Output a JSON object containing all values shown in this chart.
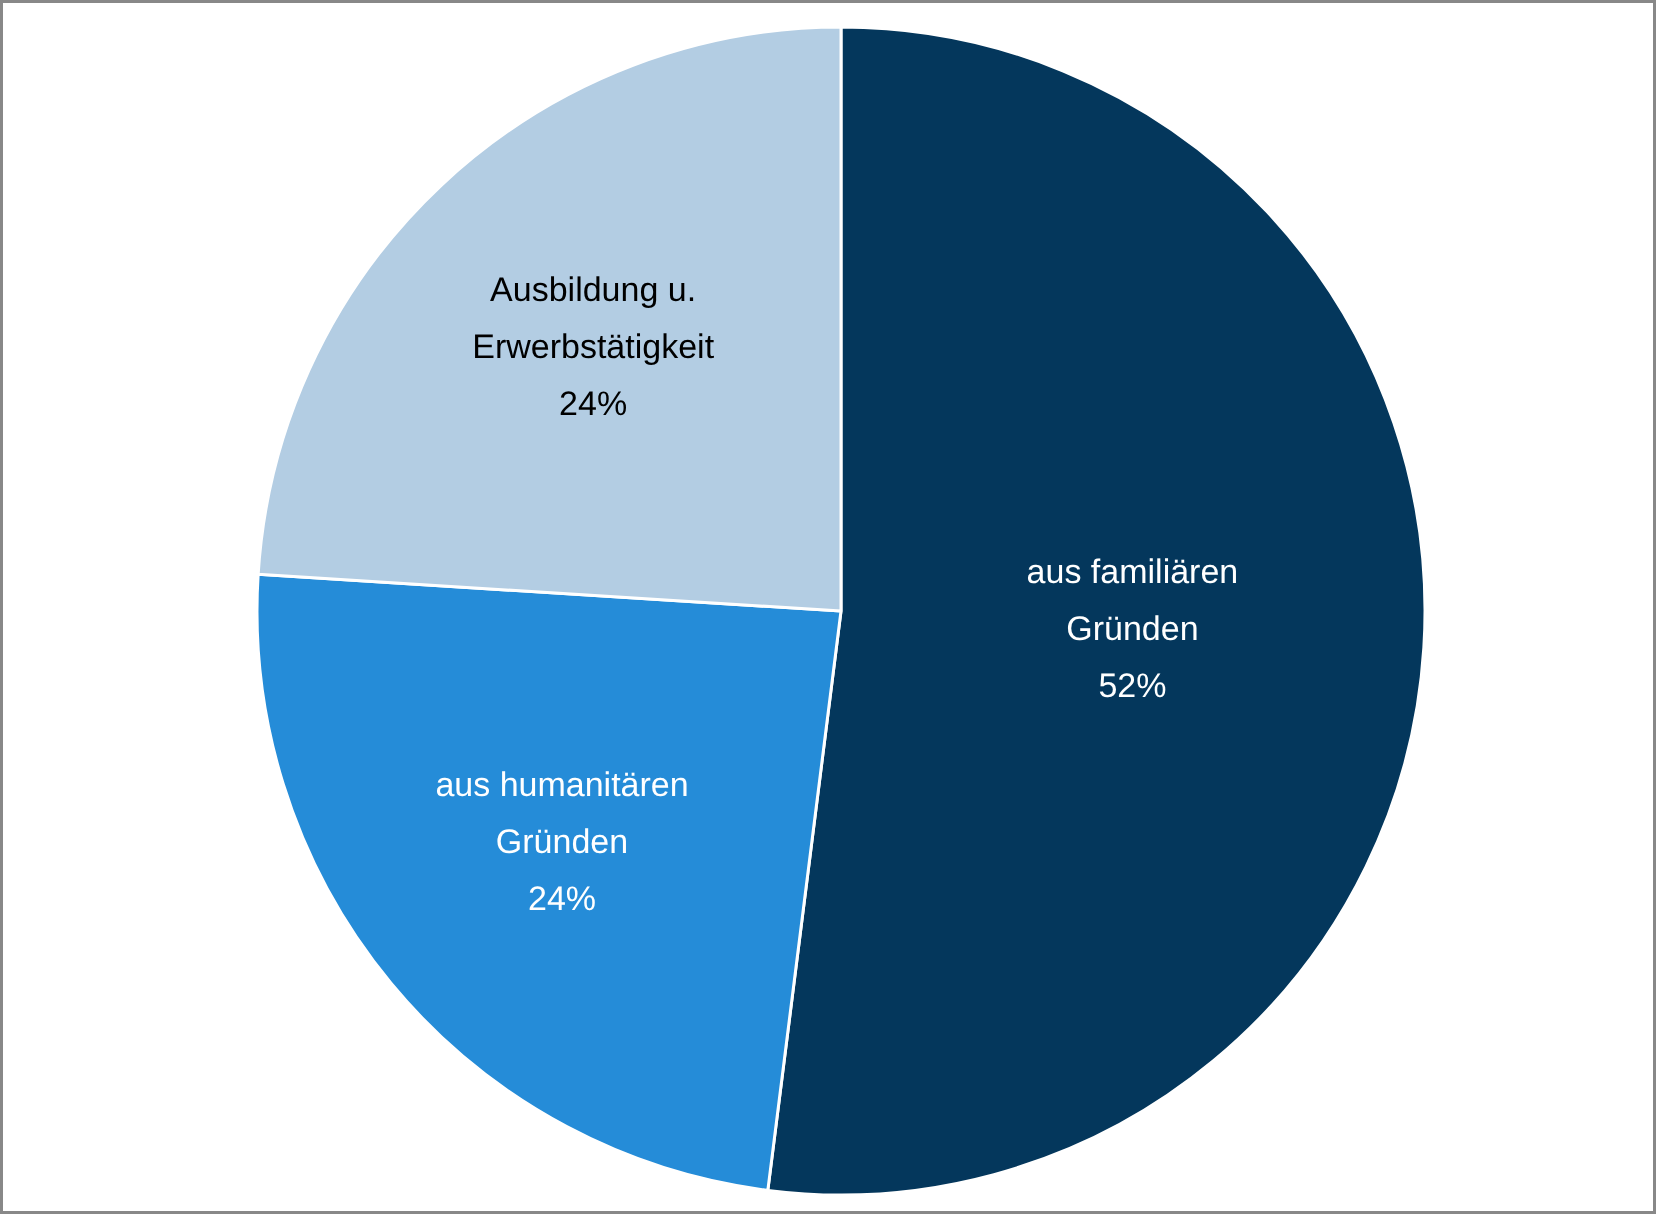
{
  "chart_data": {
    "type": "pie",
    "categories": [
      "aus familiären Gründen",
      "aus humanitären Gründen",
      "Ausbildung u. Erwerbstätigkeit"
    ],
    "values": [
      52,
      24,
      24
    ],
    "value_labels": [
      "52%",
      "24%",
      "24%"
    ],
    "colors": [
      "#04375c",
      "#258cd8",
      "#b3cde3"
    ]
  }
}
